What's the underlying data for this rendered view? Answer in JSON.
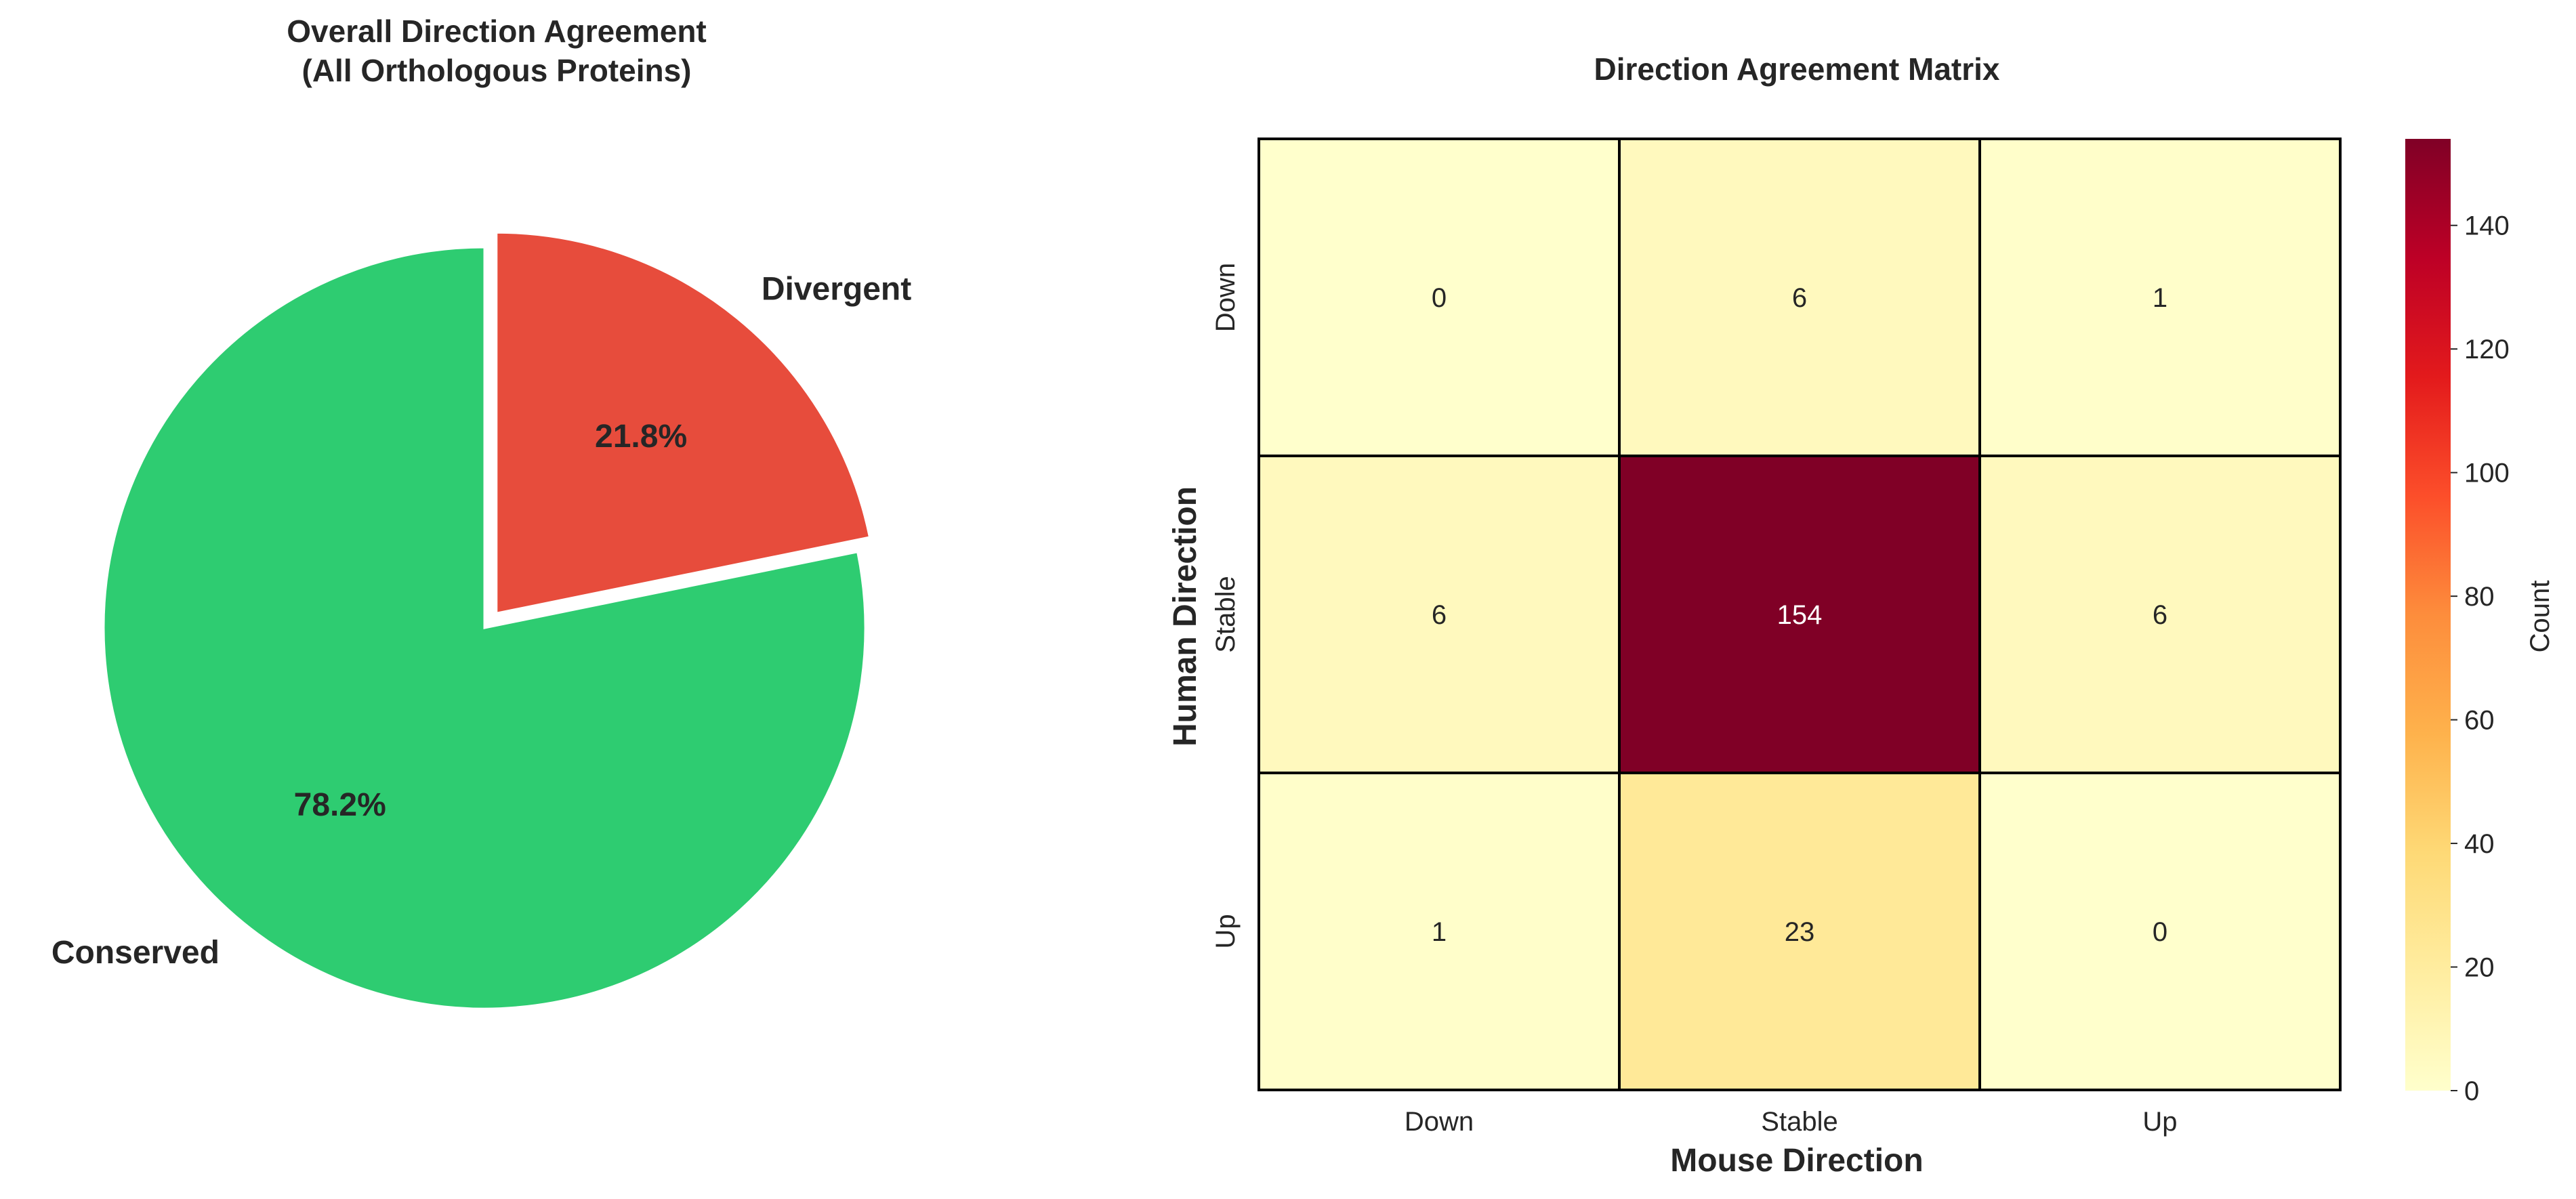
{
  "chart_data": [
    {
      "type": "pie",
      "title": "Overall Direction Agreement\n(All Orthologous Proteins)",
      "slices": [
        {
          "label": "Divergent",
          "value": 21.8,
          "pct_label": "21.8%",
          "color": "#e74c3c",
          "exploded": true
        },
        {
          "label": "Conserved",
          "value": 78.2,
          "pct_label": "78.2%",
          "color": "#2ecc71",
          "exploded": false
        }
      ],
      "start_angle_deg": 90,
      "direction": "clockwise"
    },
    {
      "type": "heatmap",
      "title": "Direction Agreement Matrix",
      "xlabel": "Mouse Direction",
      "ylabel": "Human Direction",
      "x_categories": [
        "Down",
        "Stable",
        "Up"
      ],
      "y_categories": [
        "Down",
        "Stable",
        "Up"
      ],
      "values": [
        [
          0,
          6,
          1
        ],
        [
          6,
          154,
          6
        ],
        [
          1,
          23,
          0
        ]
      ],
      "colormap": "YlOrRd",
      "vmin": 0,
      "vmax": 154,
      "colorbar": {
        "label": "Count",
        "ticks": [
          0,
          20,
          40,
          60,
          80,
          100,
          120,
          140
        ]
      },
      "grid": true
    }
  ]
}
